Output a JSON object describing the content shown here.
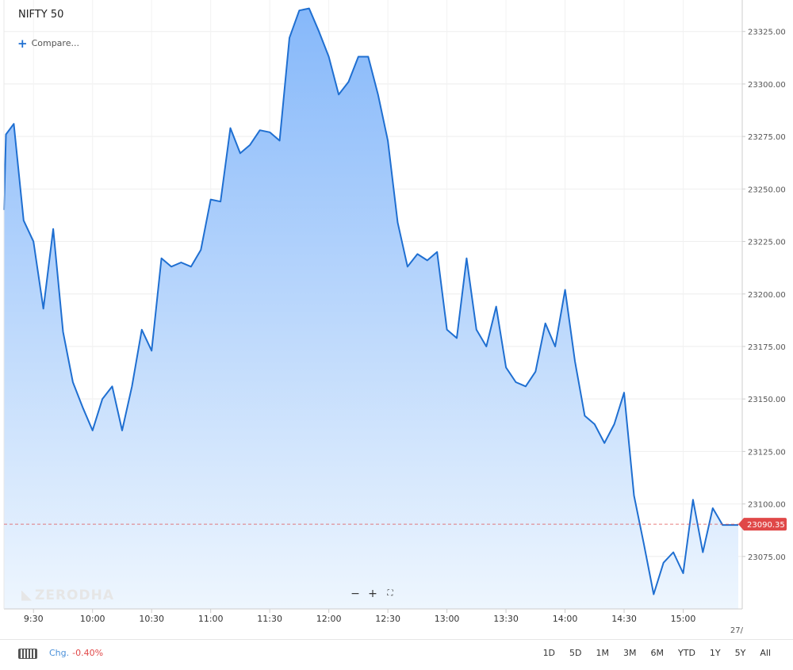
{
  "header": {
    "title": "NIFTY 50",
    "compare_label": "Compare...",
    "compare_icon": "plus-icon"
  },
  "watermark": {
    "text": "ZERODHA"
  },
  "zoom": {
    "zoom_out": "−",
    "zoom_in": "+",
    "fullscreen_icon": "fullscreen-icon"
  },
  "footer": {
    "keyboard_icon": "keyboard-icon",
    "chg_label": "Chg.",
    "chg_value": "-0.40%",
    "ranges": [
      "1D",
      "5D",
      "1M",
      "3M",
      "6M",
      "YTD",
      "1Y",
      "5Y",
      "All"
    ]
  },
  "colors": {
    "line": "#1f6fd1",
    "fill_top": "#86b8fa",
    "fill_bottom": "#eef6fe",
    "last_price": "#e04848"
  },
  "chart_data": {
    "type": "area",
    "title": "NIFTY 50",
    "xlabel": "",
    "ylabel": "",
    "x_tick_labels": [
      "9:30",
      "10:00",
      "10:30",
      "11:00",
      "11:30",
      "12:00",
      "12:30",
      "13:00",
      "13:30",
      "14:00",
      "14:30",
      "15:00"
    ],
    "x_edge_label": "27/",
    "y_ticks": [
      "23075.00",
      "23100.00",
      "23125.00",
      "23150.00",
      "23175.00",
      "23200.00",
      "23225.00",
      "23250.00",
      "23275.00",
      "23300.00",
      "23325.00"
    ],
    "ylim": [
      23050,
      23340
    ],
    "xlim": [
      "09:15",
      "15:30"
    ],
    "grid": true,
    "last_price": {
      "value": 23090.35,
      "label": "23090.35"
    },
    "series": [
      {
        "x": [
          "09:15",
          "09:16",
          "09:20",
          "09:25",
          "09:30",
          "09:35",
          "09:40",
          "09:45",
          "09:50",
          "09:55",
          "10:00",
          "10:05",
          "10:10",
          "10:15",
          "10:20",
          "10:25",
          "10:30",
          "10:35",
          "10:40",
          "10:45",
          "10:50",
          "10:55",
          "11:00",
          "11:05",
          "11:10",
          "11:15",
          "11:20",
          "11:25",
          "11:30",
          "11:35",
          "11:40",
          "11:45",
          "11:50",
          "11:55",
          "12:00",
          "12:05",
          "12:10",
          "12:15",
          "12:20",
          "12:25",
          "12:30",
          "12:35",
          "12:40",
          "12:45",
          "12:50",
          "12:55",
          "13:00",
          "13:05",
          "13:10",
          "13:15",
          "13:20",
          "13:25",
          "13:30",
          "13:35",
          "13:40",
          "13:45",
          "13:50",
          "13:55",
          "14:00",
          "14:05",
          "14:10",
          "14:15",
          "14:20",
          "14:25",
          "14:30",
          "14:35",
          "14:40",
          "14:45",
          "14:50",
          "14:55",
          "15:00",
          "15:05",
          "15:10",
          "15:15",
          "15:20",
          "15:25",
          "15:28"
        ],
        "values": [
          23240,
          23276,
          23281,
          23235,
          23225,
          23193,
          23231,
          23182,
          23158,
          23146,
          23135,
          23150,
          23156,
          23135,
          23156,
          23183,
          23173,
          23217,
          23213,
          23215,
          23213,
          23221,
          23245,
          23244,
          23279,
          23267,
          23271,
          23278,
          23277,
          23273,
          23322,
          23335,
          23336,
          23325,
          23313,
          23295,
          23301,
          23313,
          23313,
          23295,
          23273,
          23234,
          23213,
          23219,
          23216,
          23220,
          23183,
          23179,
          23217,
          23183,
          23175,
          23194,
          23165,
          23158,
          23156,
          23163,
          23186,
          23175,
          23202,
          23168,
          23142,
          23138,
          23129,
          23138,
          23153,
          23104,
          23081,
          23057,
          23072,
          23077,
          23067,
          23102,
          23077,
          23098,
          23090,
          23090,
          23090
        ]
      }
    ]
  }
}
